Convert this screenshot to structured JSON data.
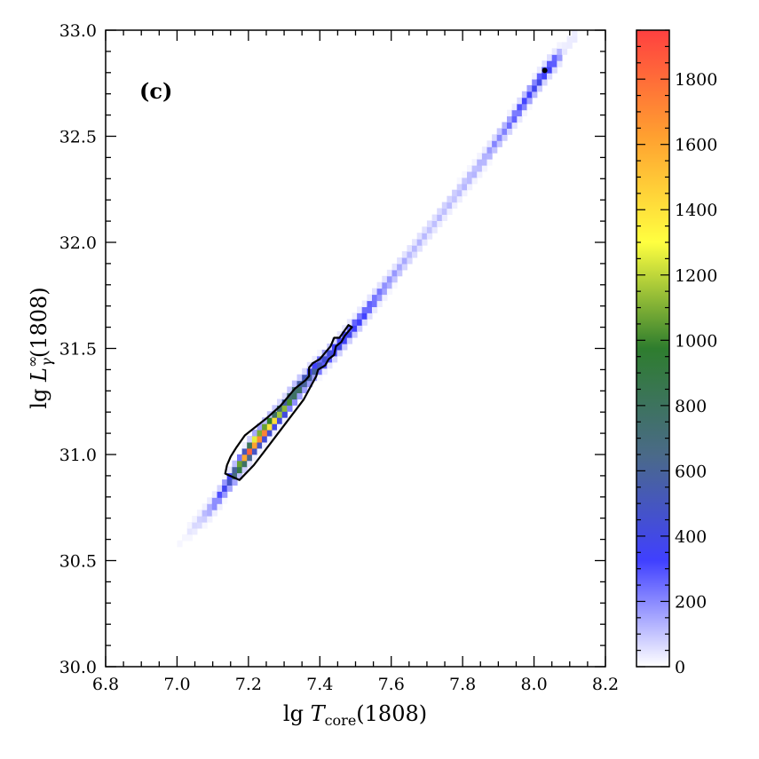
{
  "chart_data": {
    "type": "heatmap",
    "panel_label": "(c)",
    "xlabel": {
      "prefix": "lg ",
      "symbol": "T",
      "subscript": "core",
      "suffix": "(1808)"
    },
    "ylabel": {
      "prefix": "lg ",
      "symbol": "L",
      "superscript": "∞",
      "subscript": "γ",
      "suffix": "(1808)"
    },
    "xlim": [
      6.8,
      8.2
    ],
    "ylim": [
      30.0,
      33.0
    ],
    "x_ticks": [
      "6.8",
      "7.0",
      "7.2",
      "7.4",
      "7.6",
      "7.8",
      "8.0",
      "8.2"
    ],
    "y_ticks": [
      "30.0",
      "30.5",
      "31.0",
      "31.5",
      "32.0",
      "32.5",
      "33.0"
    ],
    "colorbar": {
      "min": 0,
      "max": 1950,
      "ticks": [
        "0",
        "200",
        "400",
        "600",
        "800",
        "1000",
        "1200",
        "1400",
        "1600",
        "1800"
      ],
      "colors": [
        "#ffffff",
        "#4040ff",
        "#4a6a88",
        "#2e7d2e",
        "#ffff40",
        "#ffa030",
        "#ff4040"
      ]
    },
    "density_ridge": [
      {
        "x": 7.03,
        "y": 30.63,
        "count": 30
      },
      {
        "x": 7.07,
        "y": 30.7,
        "count": 100
      },
      {
        "x": 7.11,
        "y": 30.78,
        "count": 250
      },
      {
        "x": 7.14,
        "y": 30.86,
        "count": 420
      },
      {
        "x": 7.16,
        "y": 30.91,
        "count": 800
      },
      {
        "x": 7.18,
        "y": 30.96,
        "count": 1300
      },
      {
        "x": 7.2,
        "y": 31.01,
        "count": 1750
      },
      {
        "x": 7.22,
        "y": 31.06,
        "count": 1900
      },
      {
        "x": 7.24,
        "y": 31.1,
        "count": 1750
      },
      {
        "x": 7.26,
        "y": 31.14,
        "count": 1500
      },
      {
        "x": 7.28,
        "y": 31.18,
        "count": 1350
      },
      {
        "x": 7.3,
        "y": 31.22,
        "count": 1150
      },
      {
        "x": 7.32,
        "y": 31.27,
        "count": 1000
      },
      {
        "x": 7.34,
        "y": 31.31,
        "count": 850
      },
      {
        "x": 7.36,
        "y": 31.35,
        "count": 700
      },
      {
        "x": 7.38,
        "y": 31.39,
        "count": 580
      },
      {
        "x": 7.41,
        "y": 31.44,
        "count": 480
      },
      {
        "x": 7.45,
        "y": 31.51,
        "count": 420
      },
      {
        "x": 7.5,
        "y": 31.61,
        "count": 380
      },
      {
        "x": 7.55,
        "y": 31.72,
        "count": 300
      },
      {
        "x": 7.6,
        "y": 31.83,
        "count": 180
      },
      {
        "x": 7.66,
        "y": 31.96,
        "count": 120
      },
      {
        "x": 7.72,
        "y": 32.09,
        "count": 110
      },
      {
        "x": 7.78,
        "y": 32.22,
        "count": 120
      },
      {
        "x": 7.85,
        "y": 32.37,
        "count": 150
      },
      {
        "x": 7.91,
        "y": 32.51,
        "count": 220
      },
      {
        "x": 7.96,
        "y": 32.63,
        "count": 320
      },
      {
        "x": 8.0,
        "y": 32.73,
        "count": 380
      },
      {
        "x": 8.03,
        "y": 32.8,
        "count": 420
      },
      {
        "x": 8.06,
        "y": 32.86,
        "count": 330
      },
      {
        "x": 8.08,
        "y": 32.9,
        "count": 80
      }
    ],
    "contour": [
      [
        7.135,
        30.91
      ],
      [
        7.175,
        30.88
      ],
      [
        7.215,
        30.95
      ],
      [
        7.265,
        31.06
      ],
      [
        7.31,
        31.16
      ],
      [
        7.355,
        31.26
      ],
      [
        7.39,
        31.37
      ],
      [
        7.395,
        31.4
      ],
      [
        7.415,
        31.42
      ],
      [
        7.425,
        31.45
      ],
      [
        7.44,
        31.47
      ],
      [
        7.445,
        31.51
      ],
      [
        7.46,
        31.53
      ],
      [
        7.47,
        31.56
      ],
      [
        7.49,
        31.6
      ],
      [
        7.48,
        31.61
      ],
      [
        7.455,
        31.55
      ],
      [
        7.44,
        31.55
      ],
      [
        7.43,
        31.51
      ],
      [
        7.41,
        31.47
      ],
      [
        7.4,
        31.45
      ],
      [
        7.38,
        31.43
      ],
      [
        7.37,
        31.41
      ],
      [
        7.37,
        31.37
      ],
      [
        7.36,
        31.35
      ],
      [
        7.33,
        31.31
      ],
      [
        7.29,
        31.23
      ],
      [
        7.25,
        31.17
      ],
      [
        7.22,
        31.13
      ],
      [
        7.19,
        31.09
      ],
      [
        7.165,
        31.03
      ],
      [
        7.15,
        30.99
      ],
      [
        7.14,
        30.95
      ]
    ],
    "marker": {
      "x": 8.03,
      "y": 32.81
    }
  }
}
